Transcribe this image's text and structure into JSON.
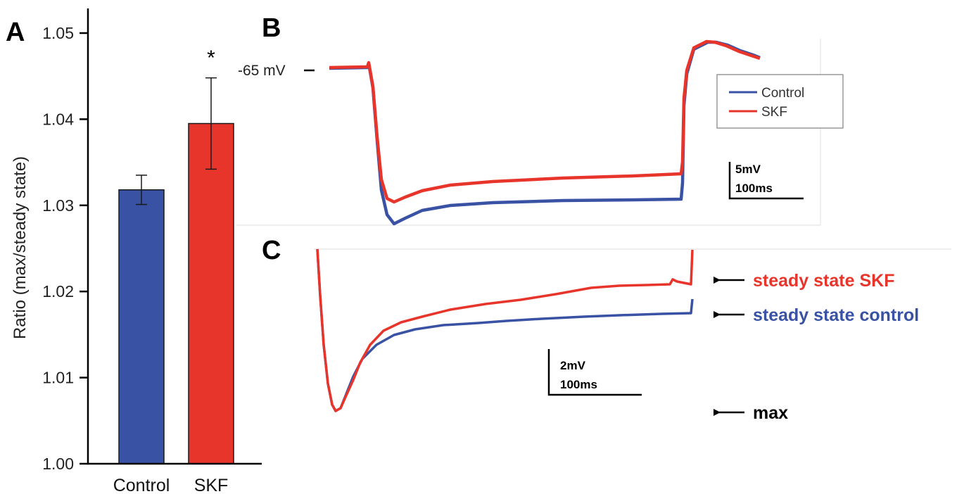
{
  "colors": {
    "control": "#3952a4",
    "skf": "#e8352b",
    "axis": "#000000"
  },
  "panels": {
    "a": {
      "letter": "A"
    },
    "b": {
      "letter": "B"
    },
    "c": {
      "letter": "C"
    }
  },
  "chart_data": [
    {
      "type": "bar",
      "panel": "A",
      "categories": [
        "Control",
        "SKF"
      ],
      "values": [
        1.0318,
        1.0395
      ],
      "error": [
        0.0017,
        0.0053
      ],
      "ylabel": "Ratio (max/steady state)",
      "ylim": [
        1.0,
        1.05
      ],
      "yticks": [
        "1.00",
        "1.01",
        "1.02",
        "1.03",
        "1.04",
        "1.05"
      ],
      "significance": {
        "category": "SKF",
        "label": "*"
      },
      "series_colors": [
        "#3952a4",
        "#e8352b"
      ]
    },
    {
      "type": "line",
      "panel": "B",
      "baseline_label": "-65 mV",
      "legend": {
        "placement": "top-right",
        "entries": [
          "Control",
          "SKF"
        ]
      },
      "scale_bar": {
        "voltage": "5mV",
        "time": "100ms"
      },
      "series": [
        {
          "name": "Control",
          "color": "#3952a4"
        },
        {
          "name": "SKF",
          "color": "#e8352b"
        }
      ]
    },
    {
      "type": "line",
      "panel": "C",
      "scale_bar": {
        "voltage": "2mV",
        "time": "100ms"
      },
      "annotations": [
        {
          "text": "steady state SKF",
          "color": "#e8352b"
        },
        {
          "text": "steady state control",
          "color": "#3952a4"
        },
        {
          "text": "max",
          "color": "#000000"
        }
      ]
    }
  ]
}
